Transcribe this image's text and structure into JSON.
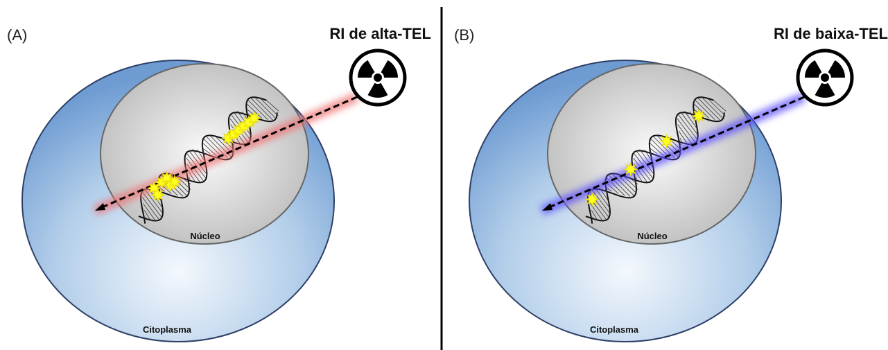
{
  "panels": [
    {
      "label": "(A)",
      "title": "RI de alta-TEL",
      "nucleus": "Núcleo",
      "cytoplasm": "Citoplasma"
    },
    {
      "label": "(B)",
      "title": "RI de baixa-TEL",
      "nucleus": "Núcleo",
      "cytoplasm": "Citoplasma"
    }
  ]
}
